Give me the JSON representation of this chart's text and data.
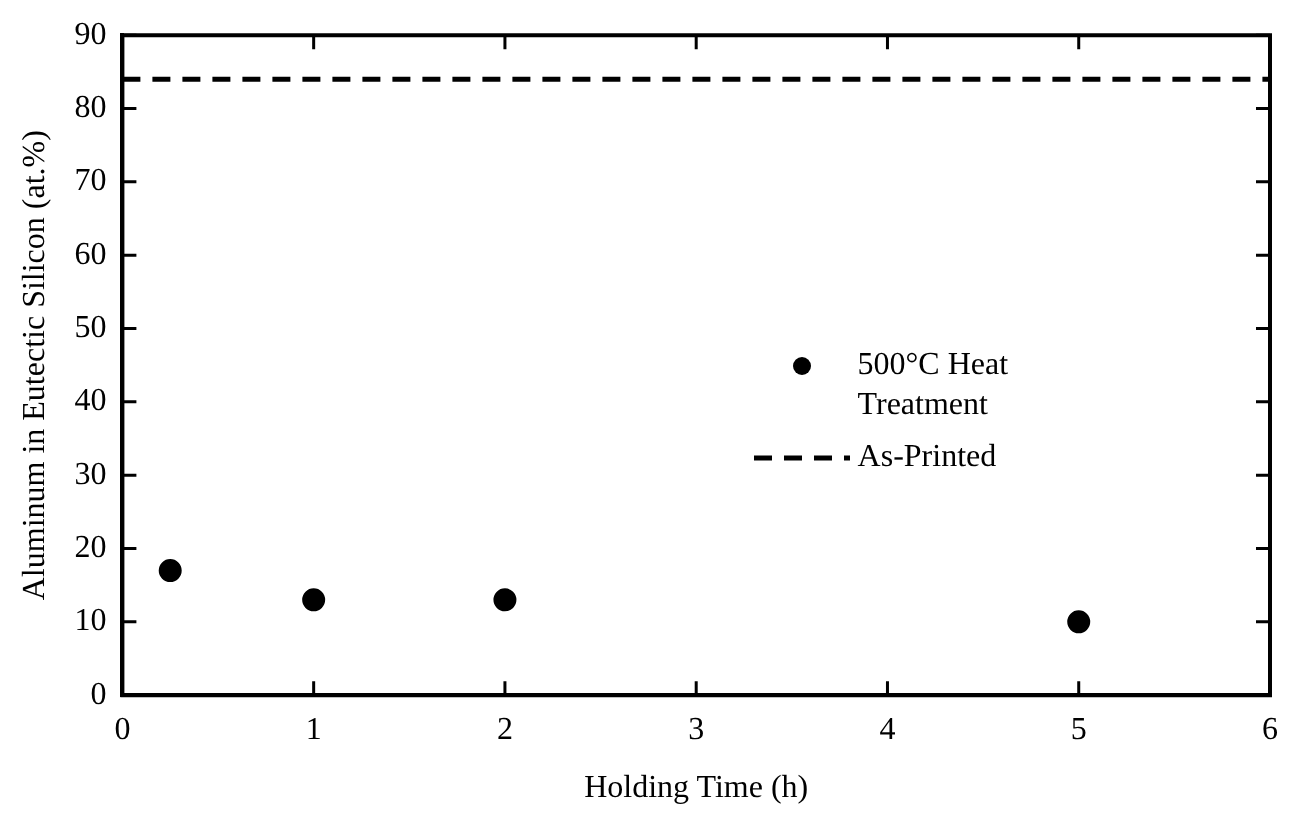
{
  "chart_data": {
    "type": "scatter",
    "xlabel": "Holding Time (h)",
    "ylabel": "Aluminum in Eutectic Silicon (at.%)",
    "x": [
      0.25,
      1,
      2,
      5
    ],
    "series": [
      {
        "name": "500°C Heat Treatment",
        "color": "#000000",
        "values": [
          17,
          13,
          13,
          10
        ],
        "marker": "circle"
      },
      {
        "name": "As-Printed",
        "type": "line",
        "color": "#000000",
        "x": [
          0,
          6
        ],
        "values": [
          84,
          84
        ],
        "line_style": "dashed",
        "marker": "none"
      }
    ],
    "xlim": [
      0,
      6
    ],
    "xticks": [
      0,
      1,
      2,
      3,
      4,
      5,
      6
    ],
    "ylim": [
      0,
      90
    ],
    "yticks": [
      0,
      10,
      20,
      30,
      40,
      50,
      60,
      70,
      80,
      90
    ],
    "grid": false,
    "legend": "right"
  }
}
